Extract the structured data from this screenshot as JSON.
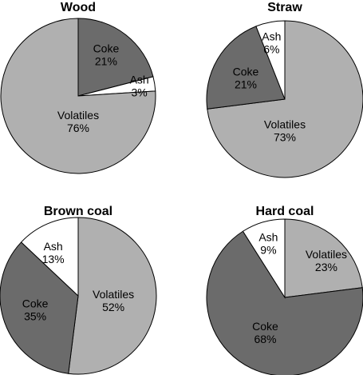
{
  "chart_data": [
    {
      "type": "pie",
      "title": "Wood",
      "slices": [
        {
          "label": "Coke",
          "value": 21,
          "value_label": "21%",
          "color": "#6b6b6b"
        },
        {
          "label": "Ash",
          "value": 3,
          "value_label": "3%",
          "color": "#ffffff"
        },
        {
          "label": "Volatiles",
          "value": 76,
          "value_label": "76%",
          "color": "#b0b0b0"
        }
      ]
    },
    {
      "type": "pie",
      "title": "Straw",
      "slices": [
        {
          "label": "Volatiles",
          "value": 73,
          "value_label": "73%",
          "color": "#b0b0b0"
        },
        {
          "label": "Coke",
          "value": 21,
          "value_label": "21%",
          "color": "#6b6b6b"
        },
        {
          "label": "Ash",
          "value": 6,
          "value_label": "6%",
          "color": "#ffffff"
        }
      ]
    },
    {
      "type": "pie",
      "title": "Brown coal",
      "slices": [
        {
          "label": "Volatiles",
          "value": 52,
          "value_label": "52%",
          "color": "#b0b0b0"
        },
        {
          "label": "Coke",
          "value": 35,
          "value_label": "35%",
          "color": "#6b6b6b"
        },
        {
          "label": "Ash",
          "value": 13,
          "value_label": "13%",
          "color": "#ffffff"
        }
      ]
    },
    {
      "type": "pie",
      "title": "Hard coal",
      "slices": [
        {
          "label": "Volatiles",
          "value": 23,
          "value_label": "23%",
          "color": "#b0b0b0"
        },
        {
          "label": "Coke",
          "value": 68,
          "value_label": "68%",
          "color": "#6b6b6b"
        },
        {
          "label": "Ash",
          "value": 9,
          "value_label": "9%",
          "color": "#ffffff"
        }
      ]
    }
  ]
}
